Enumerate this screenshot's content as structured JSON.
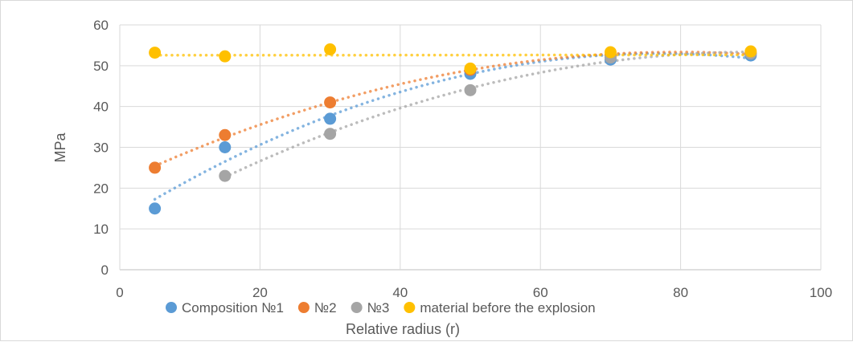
{
  "chart_data": {
    "type": "scatter",
    "title": "",
    "xlabel": "Relative radius (r)",
    "ylabel": "MPa",
    "xlim": [
      0,
      100
    ],
    "ylim": [
      0,
      60
    ],
    "xticks": [
      0,
      20,
      40,
      60,
      80,
      100
    ],
    "yticks": [
      0,
      10,
      20,
      30,
      40,
      50,
      60
    ],
    "grid": true,
    "legend_position": "bottom",
    "trendlines": "dotted",
    "series": [
      {
        "name": "Composition №1",
        "color": "#5b9bd5",
        "x": [
          5,
          15,
          30,
          50,
          70,
          90
        ],
        "y": [
          15,
          30,
          37,
          48,
          51.5,
          52.5
        ]
      },
      {
        "name": "№2",
        "color": "#ed7d31",
        "x": [
          5,
          15,
          30,
          50,
          70,
          90
        ],
        "y": [
          25,
          33,
          41,
          49,
          52.5,
          53
        ]
      },
      {
        "name": "№3",
        "color": "#a5a5a5",
        "x": [
          15,
          30,
          50,
          70,
          90
        ],
        "y": [
          23,
          33.3,
          44,
          52,
          53
        ]
      },
      {
        "name": "material before the explosion",
        "color": "#ffc000",
        "x": [
          5,
          15,
          30,
          50,
          70,
          90
        ],
        "y": [
          53.2,
          52.3,
          54,
          49.3,
          53.3,
          53.5
        ]
      }
    ]
  }
}
